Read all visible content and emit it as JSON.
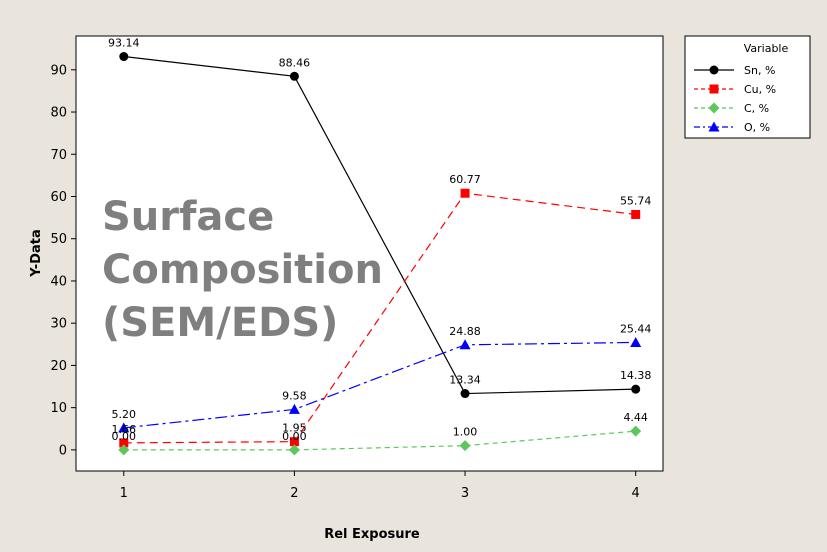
{
  "chart_data": {
    "type": "line",
    "title": "",
    "xlabel": "Rel Exposure",
    "ylabel": "Y-Data",
    "x": [
      1,
      2,
      3,
      4
    ],
    "x_ticks": [
      "1",
      "2",
      "3",
      "4"
    ],
    "y_ticks": [
      "0",
      "10",
      "20",
      "30",
      "40",
      "50",
      "60",
      "70",
      "80",
      "90"
    ],
    "xlim": [
      0.72,
      4.16
    ],
    "ylim": [
      -5,
      98
    ],
    "grid": false,
    "legend": {
      "title": "Variable",
      "position": "top-right-outside"
    },
    "series": [
      {
        "name": "Sn, %",
        "values": [
          93.14,
          88.46,
          13.34,
          14.38
        ],
        "labels": [
          "93.14",
          "88.46",
          "13.34",
          "14.38"
        ],
        "color": "#000000",
        "marker": "circle",
        "dash": "solid"
      },
      {
        "name": "Cu, %",
        "values": [
          1.66,
          1.95,
          60.77,
          55.74
        ],
        "labels": [
          "1.66",
          "1.95",
          "60.77",
          "55.74"
        ],
        "color": "#ff0000",
        "marker": "square",
        "dash": "dashed"
      },
      {
        "name": "C, %",
        "values": [
          0.0,
          0.0,
          1.0,
          4.44
        ],
        "labels": [
          "0.00",
          "0.00",
          "1.00",
          "4.44"
        ],
        "color": "#5cc85c",
        "marker": "diamond",
        "dash": "dotted-dash"
      },
      {
        "name": "O, %",
        "values": [
          5.2,
          9.58,
          24.88,
          25.44
        ],
        "labels": [
          "5.20",
          "9.58",
          "24.88",
          "25.44"
        ],
        "color": "#0000ff",
        "marker": "triangle",
        "dash": "dashdot"
      }
    ],
    "annotation": [
      "Surface",
      "Composition",
      "(SEM/EDS)"
    ]
  }
}
